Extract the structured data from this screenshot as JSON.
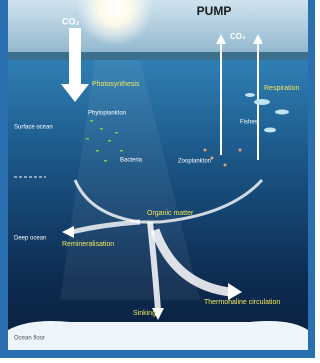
{
  "header": {
    "title": "PUMP"
  },
  "labels": {
    "co2_in": "CO₂",
    "co2_out": "CO₂",
    "photosynthesis": "Photosynthesis",
    "respiration": "Respiration",
    "phytoplankton": "Phytoplankton",
    "surface_ocean": "Surface ocean",
    "fishes": "Fishes",
    "bacteria": "Bacteria",
    "zooplankton": "Zooplankton",
    "organic_matter": "Organic matter",
    "deep_ocean": "Deep ocean",
    "remineralisation": "Remineralisation",
    "thermohaline": "Thermohaline circulation",
    "sinking": "Sinking",
    "ocean_floor": "Ocean floor"
  }
}
